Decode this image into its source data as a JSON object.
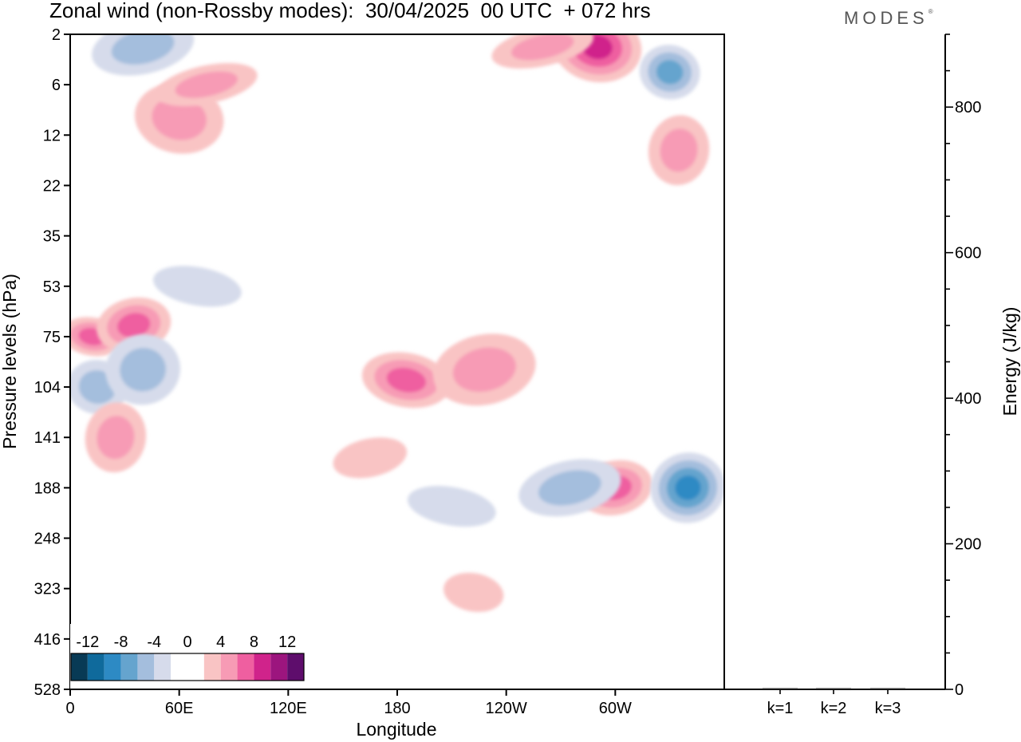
{
  "title": "Zonal wind (non-Rossby modes):  30/04/2025  00 UTC  + 072 hrs",
  "brand": {
    "name": "MODES",
    "mark": "®"
  },
  "chart_data": [
    {
      "type": "heatmap",
      "variable": "Zonal wind (non-Rossby modes)",
      "xlabel": "Longitude",
      "ylabel": "Pressure levels (hPa)",
      "x_ticks": [
        "0",
        "60E",
        "120E",
        "180",
        "120W",
        "60W"
      ],
      "x_tick_values": [
        0,
        60,
        120,
        180,
        240,
        300
      ],
      "xlim": [
        0,
        360
      ],
      "y_ticks": [
        "2",
        "6",
        "12",
        "22",
        "35",
        "53",
        "75",
        "104",
        "141",
        "188",
        "248",
        "323",
        "416",
        "528"
      ],
      "y_axis": "pressure levels (top to bottom)",
      "colorbar": {
        "tick_labels": [
          "-12",
          "-8",
          "-4",
          "0",
          "4",
          "8",
          "12"
        ],
        "tick_values": [
          -12,
          -8,
          -4,
          0,
          4,
          8,
          12
        ],
        "bounds": [
          -14,
          -12,
          -10,
          -8,
          -6,
          -4,
          -2,
          2,
          4,
          6,
          8,
          10,
          12,
          14
        ],
        "colors": [
          "#083a55",
          "#0f6a9c",
          "#2d8ac4",
          "#65a4ce",
          "#a4bedd",
          "#d6dbeb",
          "#ffffff",
          "#f9c4c4",
          "#f79bb5",
          "#ef5fa0",
          "#d0238b",
          "#9c157e",
          "#5e0d6c"
        ]
      },
      "regions": [
        {
          "lon": 12,
          "level": 75,
          "value": 7
        },
        {
          "lon": 35,
          "level": 70,
          "value": 6
        },
        {
          "lon": 60,
          "level": 10,
          "value": 5
        },
        {
          "lon": 75,
          "level": 6,
          "value": 5
        },
        {
          "lon": 15,
          "level": 104,
          "value": -5
        },
        {
          "lon": 40,
          "level": 94,
          "value": -5
        },
        {
          "lon": 70,
          "level": 53,
          "value": -3
        },
        {
          "lon": 40,
          "level": 3,
          "value": -5
        },
        {
          "lon": 25,
          "level": 141,
          "value": 4
        },
        {
          "lon": 165,
          "level": 160,
          "value": 3
        },
        {
          "lon": 185,
          "level": 100,
          "value": 6
        },
        {
          "lon": 228,
          "level": 94,
          "value": 5
        },
        {
          "lon": 222,
          "level": 330,
          "value": 3
        },
        {
          "lon": 300,
          "level": 188,
          "value": 7
        },
        {
          "lon": 290,
          "level": 3,
          "value": 9
        },
        {
          "lon": 260,
          "level": 3,
          "value": 5
        },
        {
          "lon": 330,
          "level": 5,
          "value": -7
        },
        {
          "lon": 340,
          "level": 188,
          "value": -8
        },
        {
          "lon": 210,
          "level": 210,
          "value": -3
        },
        {
          "lon": 275,
          "level": 188,
          "value": -4
        },
        {
          "lon": 335,
          "level": 15,
          "value": 5
        }
      ]
    },
    {
      "type": "bar",
      "categories": [
        "k=1",
        "k=2",
        "k=3"
      ],
      "values": [
        1,
        0.5,
        0.5
      ],
      "ylabel": "Energy (J/kg)",
      "y_ticks": [
        0,
        200,
        400,
        600,
        800
      ],
      "ylim": [
        0,
        900
      ]
    }
  ]
}
